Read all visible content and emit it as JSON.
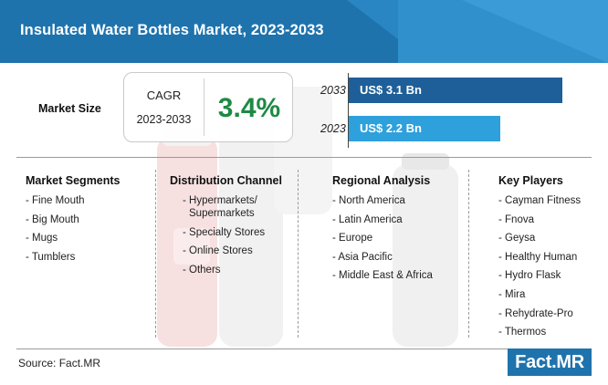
{
  "title": "Insulated Water Bottles Market, 2023-2033",
  "market_size": {
    "label": "Market Size",
    "cagr_label": "CAGR",
    "cagr_period": "2023-2033",
    "cagr_value": "3.4%"
  },
  "chart_data": {
    "type": "bar",
    "orientation": "horizontal",
    "title": "Market Size",
    "categories": [
      "2033",
      "2023"
    ],
    "values": [
      3.1,
      2.2
    ],
    "labels": [
      "US$ 3.1 Bn",
      "US$ 2.2 Bn"
    ],
    "unit": "US$ Bn",
    "xlim": [
      0,
      3.2
    ],
    "colors": [
      "#1e5f99",
      "#2ea0dc"
    ]
  },
  "columns": [
    {
      "heading": "Market Segments",
      "items": [
        "- Fine Mouth",
        "- Big Mouth",
        "- Mugs",
        "- Tumblers"
      ]
    },
    {
      "heading": "Distribution Channel",
      "items": [
        "- Hypermarkets/",
        "Supermarkets",
        "- Specialty Stores",
        "- Online Stores",
        "- Others"
      ]
    },
    {
      "heading": "Regional Analysis",
      "items": [
        "- North America",
        "- Latin America",
        "- Europe",
        "- Asia Pacific",
        "- Middle East & Africa"
      ]
    },
    {
      "heading": "Key Players",
      "items": [
        "- Cayman Fitness",
        "- Fnova",
        "- Geysa",
        "- Healthy Human",
        "- Hydro Flask",
        "- Mira",
        "- Rehydrate-Pro",
        "- Thermos"
      ]
    }
  ],
  "footer": {
    "source": "Source: Fact.MR",
    "logo": "Fact.MR"
  }
}
